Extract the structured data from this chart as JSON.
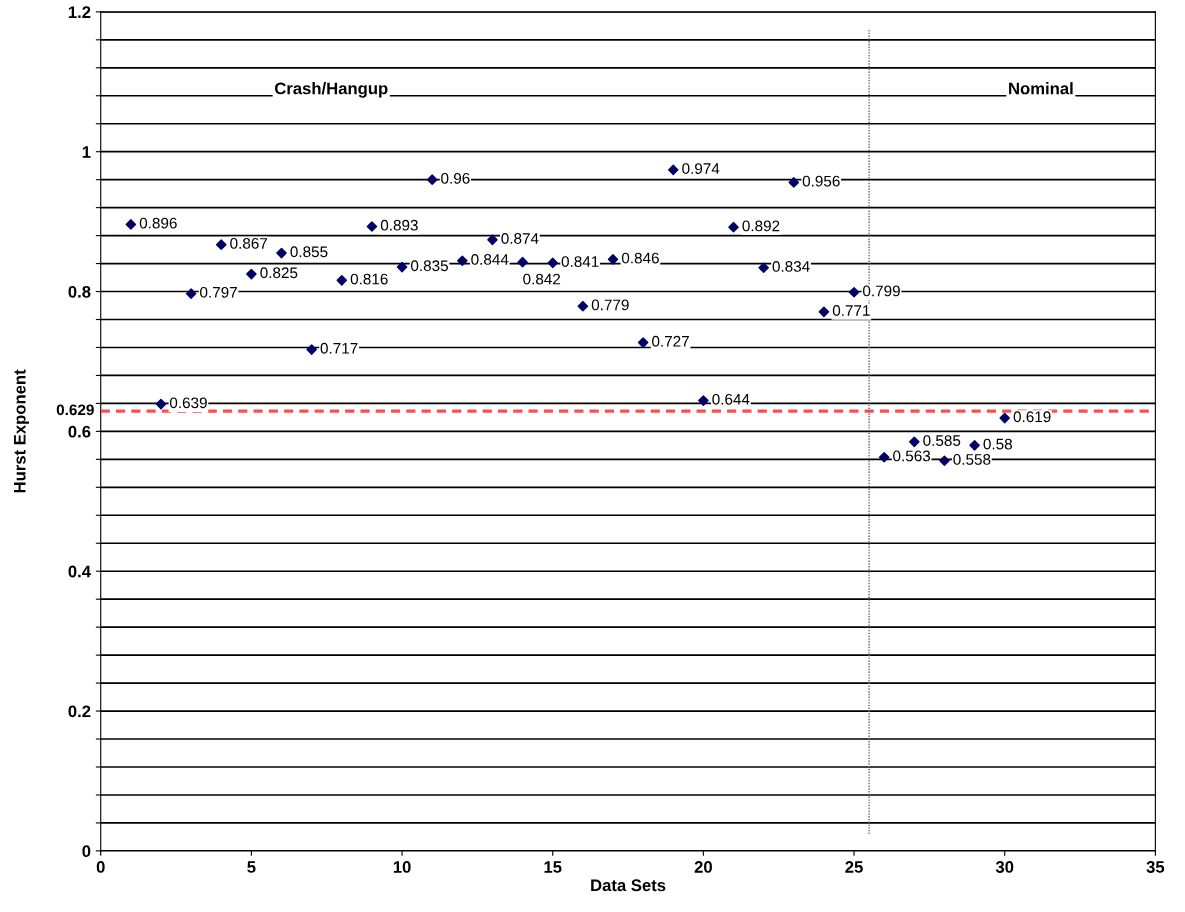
{
  "chart_data": {
    "type": "scatter",
    "xlabel": "Data Sets",
    "ylabel": "Hurst Exponent",
    "x": [
      1,
      2,
      3,
      4,
      5,
      6,
      7,
      8,
      9,
      10,
      11,
      12,
      13,
      14,
      15,
      16,
      17,
      18,
      19,
      20,
      21,
      22,
      23,
      24,
      25,
      26,
      27,
      28,
      29,
      30
    ],
    "series": [
      {
        "color": "#000066",
        "values": [
          0.896,
          0.639,
          0.797,
          0.867,
          0.825,
          0.855,
          0.717,
          0.816,
          0.893,
          0.835,
          0.96,
          0.844,
          0.874,
          0.842,
          0.841,
          0.779,
          0.846,
          0.727,
          0.974,
          0.644,
          0.892,
          0.834,
          0.956,
          0.771,
          0.799,
          0.563,
          0.585,
          0.558,
          0.58,
          0.619
        ],
        "value_labels": [
          "0.896",
          "0.639",
          "0.797",
          "0.867",
          "0.825",
          "0.855",
          "0.717",
          "0.816",
          "0.893",
          "0.835",
          "0.96",
          "0.844",
          "0.874",
          "0.842",
          "0.841",
          "0.779",
          "0.846",
          "0.727",
          "0.974",
          "0.644",
          "0.892",
          "0.834",
          "0.956",
          "0.771",
          "0.799",
          "0.563",
          "0.585",
          "0.558",
          "0.58",
          "0.619"
        ]
      }
    ],
    "marker": "diamond",
    "xlim": [
      0,
      35
    ],
    "xticks": [
      0,
      5,
      10,
      15,
      20,
      25,
      30,
      35
    ],
    "ylim": [
      0,
      1.2
    ],
    "yticks": [
      0,
      {
        "value": 0.04,
        "label": null
      },
      {
        "value": 0.08,
        "label": null
      },
      {
        "value": 0.12,
        "label": null
      },
      {
        "value": 0.16,
        "label": null
      },
      {
        "value": 0.2,
        "label": "0.2"
      },
      {
        "value": 0.24,
        "label": null
      },
      {
        "value": 0.28,
        "label": null
      },
      {
        "value": 0.32,
        "label": null
      },
      {
        "value": 0.36,
        "label": null
      },
      {
        "value": 0.4,
        "label": "0.4"
      },
      {
        "value": 0.44,
        "label": null
      },
      {
        "value": 0.48,
        "label": null
      },
      {
        "value": 0.52,
        "label": null
      },
      {
        "value": 0.56,
        "label": null
      },
      {
        "value": 0.6,
        "label": "0.6"
      },
      {
        "value": 0.64,
        "label": null
      },
      {
        "value": 0.68,
        "label": null
      },
      {
        "value": 0.72,
        "label": null
      },
      {
        "value": 0.76,
        "label": null
      },
      {
        "value": 0.8,
        "label": "0.8"
      },
      {
        "value": 0.84,
        "label": null
      },
      {
        "value": 0.88,
        "label": null
      },
      {
        "value": 0.92,
        "label": null
      },
      {
        "value": 0.96,
        "label": null
      },
      1,
      {
        "value": 1.04,
        "label": null
      },
      {
        "value": 1.08,
        "label": null
      },
      {
        "value": 1.12,
        "label": null
      },
      {
        "value": 1.16,
        "label": null
      },
      {
        "value": 1.2,
        "label": "1.2"
      }
    ],
    "grid": "y",
    "ref_lines": [
      {
        "axis": "y",
        "value": 0.629,
        "label": "0.629",
        "color": "#ff4d4d",
        "line_style": "dashed"
      },
      {
        "axis": "x",
        "value": 25.5,
        "label": null,
        "color": "#666666",
        "line_style": "dotted"
      }
    ],
    "annotations": [
      "Crash/Hangup",
      "Nominal"
    ]
  }
}
